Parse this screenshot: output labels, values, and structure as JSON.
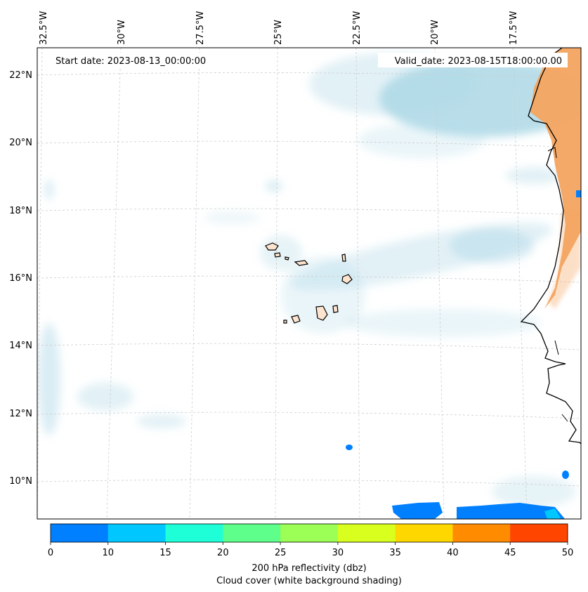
{
  "map": {
    "start_date_text": "Start date: 2023-08-13_00:00:00",
    "valid_date_text": "Valid_date: 2023-08-15T18:00:00.00",
    "lon_labels": [
      "32.5°W",
      "30°W",
      "27.5°W",
      "25°W",
      "22.5°W",
      "20°W",
      "17.5°W"
    ],
    "lat_labels": [
      "22°N",
      "20°N",
      "18°N",
      "16°N",
      "14°N",
      "12°N",
      "10°N"
    ],
    "gridlines": true
  },
  "colorbar": {
    "ticks": [
      "0",
      "10",
      "15",
      "20",
      "25",
      "30",
      "35",
      "40",
      "45",
      "50"
    ],
    "colors": [
      "#0080ff",
      "#00c8ff",
      "#1effd8",
      "#5fff8c",
      "#9bff55",
      "#d8ff1e",
      "#ffd700",
      "#ff8c00",
      "#ff4500"
    ],
    "label_line1": "200 hPa reflectivity (dbz)",
    "label_line2": "Cloud cover (white background shading)"
  },
  "colors": {
    "cloud": "#add8e6",
    "land_fill": "#f4a460",
    "island_fill": "#fde4cf",
    "echo": "#0080ff",
    "coast": "#000000"
  }
}
